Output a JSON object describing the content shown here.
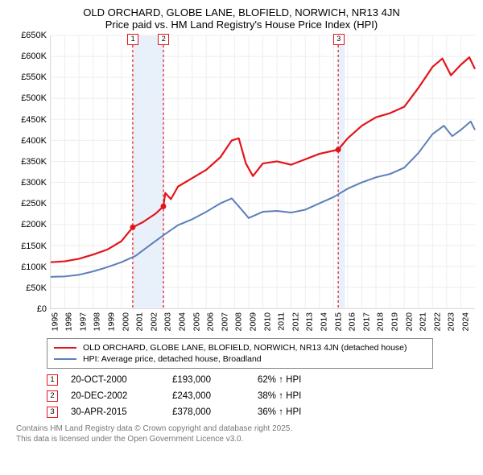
{
  "title_line1": "OLD ORCHARD, GLOBE LANE, BLOFIELD, NORWICH, NR13 4JN",
  "title_line2": "Price paid vs. HM Land Registry's House Price Index (HPI)",
  "chart": {
    "type": "line",
    "background_color": "#ffffff",
    "grid_color": "#eeeeee",
    "axis_color": "#cccccc",
    "ylim": [
      0,
      650000
    ],
    "ytick_step": 50000,
    "y_ticks": [
      "£0",
      "£50K",
      "£100K",
      "£150K",
      "£200K",
      "£250K",
      "£300K",
      "£350K",
      "£400K",
      "£450K",
      "£500K",
      "£550K",
      "£600K",
      "£650K"
    ],
    "x_years": [
      1995,
      1996,
      1997,
      1998,
      1999,
      2000,
      2001,
      2002,
      2003,
      2004,
      2005,
      2006,
      2007,
      2008,
      2009,
      2010,
      2011,
      2012,
      2013,
      2014,
      2015,
      2016,
      2017,
      2018,
      2019,
      2020,
      2021,
      2022,
      2023,
      2024
    ],
    "x_range": [
      1995,
      2025
    ],
    "series": [
      {
        "id": "property",
        "label": "OLD ORCHARD, GLOBE LANE, BLOFIELD, NORWICH, NR13 4JN (detached house)",
        "color": "#e2141b",
        "line_width": 2.2,
        "points": [
          [
            1995,
            110000
          ],
          [
            1996,
            112000
          ],
          [
            1997,
            118000
          ],
          [
            1998,
            128000
          ],
          [
            1999,
            140000
          ],
          [
            2000,
            160000
          ],
          [
            2000.8,
            193000
          ],
          [
            2001.5,
            205000
          ],
          [
            2002.4,
            225000
          ],
          [
            2002.97,
            243000
          ],
          [
            2003.1,
            275000
          ],
          [
            2003.5,
            260000
          ],
          [
            2004,
            290000
          ],
          [
            2005,
            310000
          ],
          [
            2006,
            330000
          ],
          [
            2007,
            360000
          ],
          [
            2007.8,
            400000
          ],
          [
            2008.3,
            405000
          ],
          [
            2008.8,
            345000
          ],
          [
            2009.3,
            315000
          ],
          [
            2010,
            345000
          ],
          [
            2011,
            350000
          ],
          [
            2012,
            342000
          ],
          [
            2013,
            355000
          ],
          [
            2014,
            368000
          ],
          [
            2015.33,
            378000
          ],
          [
            2016,
            405000
          ],
          [
            2017,
            435000
          ],
          [
            2018,
            455000
          ],
          [
            2019,
            465000
          ],
          [
            2020,
            480000
          ],
          [
            2021,
            525000
          ],
          [
            2022,
            575000
          ],
          [
            2022.7,
            595000
          ],
          [
            2023.3,
            555000
          ],
          [
            2024,
            580000
          ],
          [
            2024.6,
            598000
          ],
          [
            2025,
            570000
          ]
        ]
      },
      {
        "id": "hpi",
        "label": "HPI: Average price, detached house, Broadland",
        "color": "#5b7fb8",
        "line_width": 2,
        "points": [
          [
            1995,
            75000
          ],
          [
            1996,
            76000
          ],
          [
            1997,
            80000
          ],
          [
            1998,
            88000
          ],
          [
            1999,
            98000
          ],
          [
            2000,
            110000
          ],
          [
            2001,
            125000
          ],
          [
            2002,
            150000
          ],
          [
            2003,
            175000
          ],
          [
            2004,
            198000
          ],
          [
            2005,
            212000
          ],
          [
            2006,
            230000
          ],
          [
            2007,
            250000
          ],
          [
            2007.8,
            262000
          ],
          [
            2008.5,
            235000
          ],
          [
            2009,
            215000
          ],
          [
            2010,
            230000
          ],
          [
            2011,
            232000
          ],
          [
            2012,
            228000
          ],
          [
            2013,
            235000
          ],
          [
            2014,
            250000
          ],
          [
            2015,
            265000
          ],
          [
            2016,
            285000
          ],
          [
            2017,
            300000
          ],
          [
            2018,
            312000
          ],
          [
            2019,
            320000
          ],
          [
            2020,
            335000
          ],
          [
            2021,
            370000
          ],
          [
            2022,
            415000
          ],
          [
            2022.8,
            435000
          ],
          [
            2023.4,
            410000
          ],
          [
            2024,
            425000
          ],
          [
            2024.7,
            445000
          ],
          [
            2025,
            425000
          ]
        ]
      }
    ],
    "events": [
      {
        "num": "1",
        "year": 2000.8,
        "date": "20-OCT-2000",
        "price": "£193,000",
        "pct": "62% ↑ HPI",
        "color": "#e2141b"
      },
      {
        "num": "2",
        "year": 2002.97,
        "date": "20-DEC-2002",
        "price": "£243,000",
        "pct": "38% ↑ HPI",
        "color": "#e2141b"
      },
      {
        "num": "3",
        "year": 2015.33,
        "date": "30-APR-2015",
        "price": "£378,000",
        "pct": "36% ↑ HPI",
        "color": "#e2141b"
      }
    ],
    "highlight_bands": [
      {
        "from": 2000.8,
        "to": 2002.97,
        "color": "#e8f0fb"
      },
      {
        "from": 2015.33,
        "to": 2015.8,
        "color": "#e8f0fb"
      }
    ]
  },
  "footer1": "Contains HM Land Registry data © Crown copyright and database right 2025.",
  "footer2": "This data is licensed under the Open Government Licence v3.0."
}
